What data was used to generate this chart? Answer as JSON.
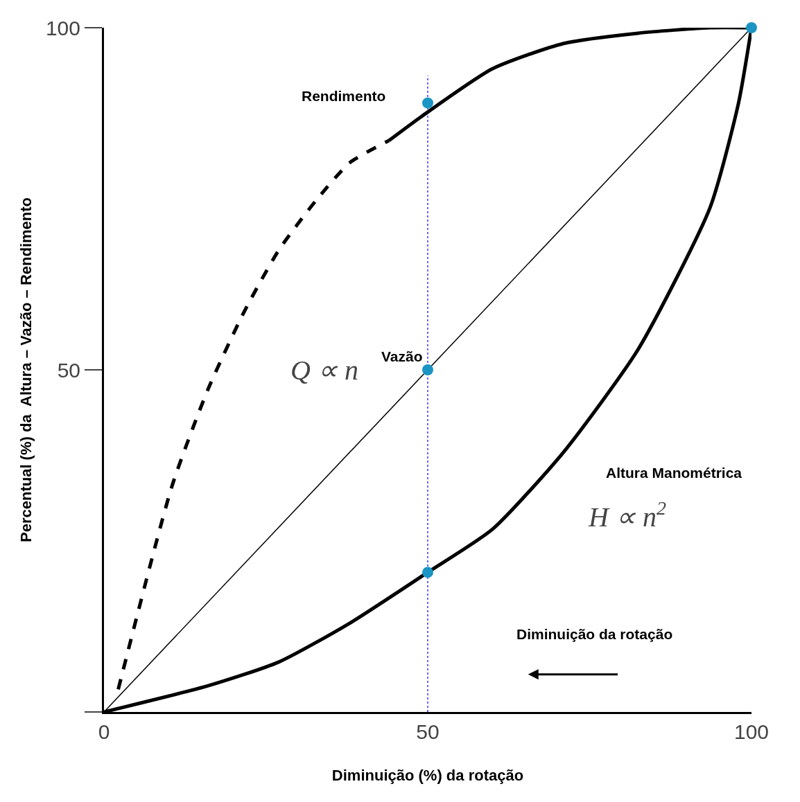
{
  "chart_data": {
    "type": "line",
    "xlabel": "Diminuição (%) da rotação",
    "ylabel": "Percentual (%) da  Altura – Vazão – Rendimento",
    "xlim": [
      0,
      100
    ],
    "ylim": [
      0,
      100
    ],
    "xticks": [
      0,
      50,
      100
    ],
    "yticks": [
      {
        "value": 0,
        "label": null
      },
      50,
      100
    ],
    "grid": false,
    "legend": false,
    "series": [
      {
        "name": "Rendimento",
        "color": "#000000",
        "line_style": "solid",
        "marker": "none",
        "x": [
          44,
          49,
          60,
          71,
          82.5,
          93.6,
          100
        ],
        "values": [
          83.5,
          87,
          94,
          97.7,
          99.2,
          100,
          100
        ]
      },
      {
        "color": "#000000",
        "line_style": "dashed",
        "marker": "none",
        "x": [
          2.2,
          10.5,
          16,
          21.6,
          27,
          32.7,
          38,
          44
        ],
        "values": [
          3.3,
          33,
          47,
          58.4,
          67.5,
          74.7,
          80.3,
          83.5
        ]
      },
      {
        "name": "Vazão",
        "color": "#000000",
        "line_style": "solid",
        "marker": "none",
        "x": [
          0,
          100
        ],
        "values": [
          0,
          100
        ]
      },
      {
        "name": "Altura Manométrica",
        "color": "#000000",
        "line_style": "solid",
        "marker": "none",
        "x": [
          0,
          16,
          27,
          38,
          50,
          60,
          71,
          82.5,
          93.6,
          98,
          100
        ],
        "values": [
          0,
          3.8,
          7.3,
          13,
          20.4,
          26.7,
          38,
          53,
          73.7,
          89,
          100
        ]
      },
      {
        "type": "scatter",
        "color": "#1b95c4",
        "marker": "circle",
        "x": [
          50,
          50,
          50,
          100
        ],
        "values": [
          89,
          50,
          20.4,
          100
        ]
      }
    ],
    "ref_lines": [
      {
        "axis": "x",
        "value": 50,
        "color": "#3333ff",
        "line_style": "dotted"
      }
    ],
    "annotations": [
      "Q ∝ n",
      "H ∝ n$^{2}$",
      "Diminuição da rotação"
    ]
  }
}
